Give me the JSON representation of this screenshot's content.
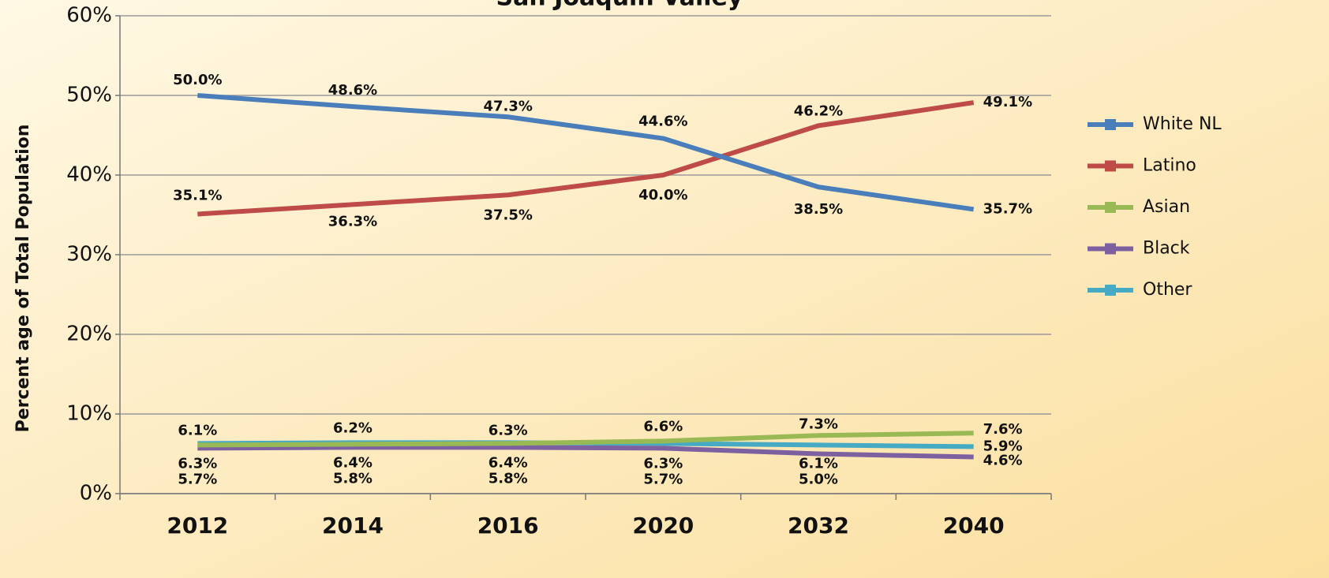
{
  "chart_data": {
    "type": "line",
    "title": "San Joaquin Valley",
    "y_label": "Percent age of Total Population",
    "categories": [
      "2012",
      "2014",
      "2016",
      "2020",
      "2032",
      "2040"
    ],
    "ylim": [
      0,
      60
    ],
    "yticks": [
      {
        "value": 0,
        "label": "0%"
      },
      {
        "value": 10,
        "label": "10%"
      },
      {
        "value": 20,
        "label": "20%"
      },
      {
        "value": 30,
        "label": "30%"
      },
      {
        "value": 40,
        "label": "40%"
      },
      {
        "value": 50,
        "label": "50%"
      },
      {
        "value": 60,
        "label": "60%"
      }
    ],
    "grid": true,
    "legend": "right",
    "series": [
      {
        "name": "White NL",
        "color": "#4a7ebb",
        "values": [
          50.0,
          48.6,
          47.3,
          44.6,
          38.5,
          35.7
        ],
        "value_labels": [
          "50.0%",
          "48.6%",
          "47.3%",
          "44.6%",
          "38.5%",
          "35.7%"
        ]
      },
      {
        "name": "Latino",
        "color": "#be4b48",
        "values": [
          35.1,
          36.3,
          37.5,
          40.0,
          46.2,
          49.1
        ],
        "value_labels": [
          "35.1%",
          "36.3%",
          "37.5%",
          "40.0%",
          "46.2%",
          "49.1%"
        ]
      },
      {
        "name": "Asian",
        "color": "#98b954",
        "values": [
          6.1,
          6.2,
          6.3,
          6.6,
          7.3,
          7.6
        ],
        "value_labels": [
          "6.1%",
          "6.2%",
          "6.3%",
          "6.6%",
          "7.3%",
          "7.6%"
        ]
      },
      {
        "name": "Black",
        "color": "#7d60a0",
        "values": [
          5.7,
          5.8,
          5.8,
          5.7,
          5.0,
          4.6
        ],
        "value_labels": [
          "5.7%",
          "5.8%",
          "5.8%",
          "5.7%",
          "5.0%",
          "4.6%"
        ]
      },
      {
        "name": "Other",
        "color": "#46aac5",
        "values": [
          6.3,
          6.4,
          6.4,
          6.3,
          6.1,
          5.9
        ],
        "value_labels": [
          "6.3%",
          "6.4%",
          "6.4%",
          "6.3%",
          "6.1%",
          "5.9%"
        ]
      }
    ]
  }
}
